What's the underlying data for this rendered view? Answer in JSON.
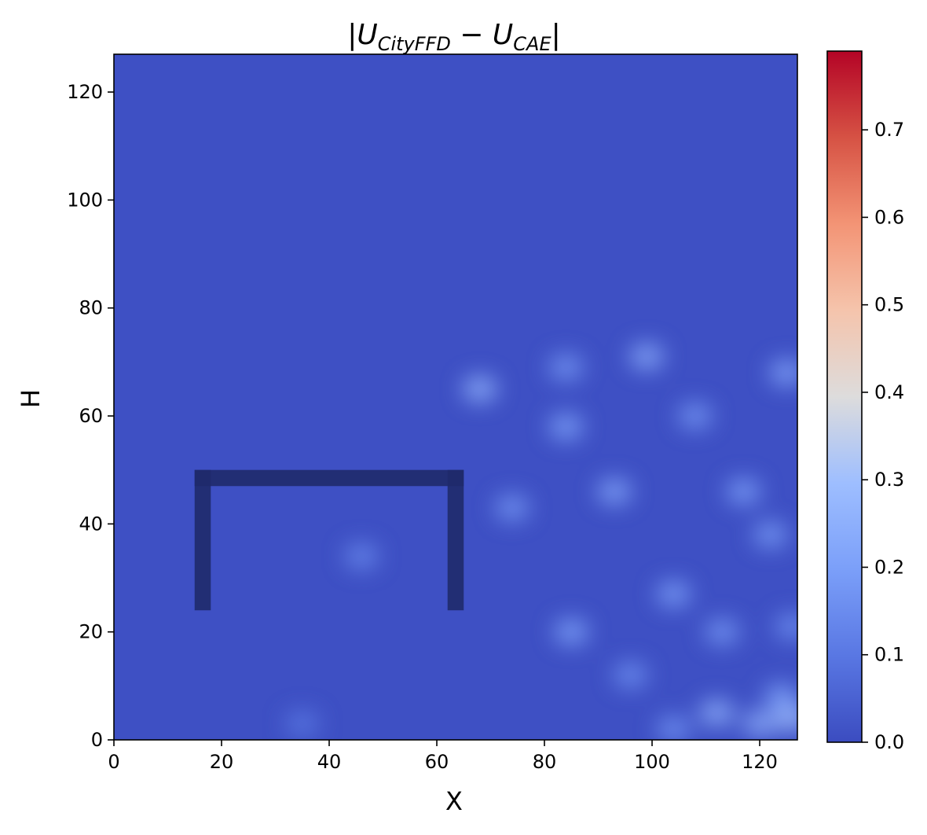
{
  "chart_data": {
    "type": "heatmap",
    "title": {
      "bar_open": "|",
      "u1": "U",
      "sub1": "CityFFD",
      "minus": " − ",
      "u2": "U",
      "sub2": "CAE",
      "bar_close": "|"
    },
    "xlabel": "X",
    "ylabel": "H",
    "xlim": [
      0,
      127
    ],
    "ylim": [
      0,
      127
    ],
    "xticks": [
      0,
      20,
      40,
      60,
      80,
      100,
      120
    ],
    "yticks": [
      0,
      20,
      40,
      60,
      80,
      100,
      120
    ],
    "colormap": "coolwarm",
    "clim": [
      0.0,
      0.79
    ],
    "colorbar_ticks": [
      "0.0",
      "0.1",
      "0.2",
      "0.3",
      "0.4",
      "0.5",
      "0.6",
      "0.7"
    ],
    "colorbar_tick_values": [
      0.0,
      0.1,
      0.2,
      0.3,
      0.4,
      0.5,
      0.6,
      0.7
    ],
    "background_value": 0.01,
    "building": {
      "x_range": [
        15,
        65
      ],
      "h_range": [
        24,
        50
      ],
      "thickness": 3,
      "color": "#1f2a6b"
    },
    "features": [
      {
        "x": 68,
        "h": 65,
        "value": 0.26
      },
      {
        "x": 84,
        "h": 69,
        "value": 0.18
      },
      {
        "x": 99,
        "h": 71,
        "value": 0.24
      },
      {
        "x": 125,
        "h": 68,
        "value": 0.22
      },
      {
        "x": 84,
        "h": 58,
        "value": 0.21
      },
      {
        "x": 108,
        "h": 60,
        "value": 0.18
      },
      {
        "x": 93,
        "h": 46,
        "value": 0.22
      },
      {
        "x": 74,
        "h": 43,
        "value": 0.18
      },
      {
        "x": 117,
        "h": 46,
        "value": 0.2
      },
      {
        "x": 122,
        "h": 38,
        "value": 0.19
      },
      {
        "x": 46,
        "h": 34,
        "value": 0.14
      },
      {
        "x": 104,
        "h": 27,
        "value": 0.2
      },
      {
        "x": 85,
        "h": 20,
        "value": 0.21
      },
      {
        "x": 113,
        "h": 20,
        "value": 0.18
      },
      {
        "x": 126,
        "h": 21,
        "value": 0.16
      },
      {
        "x": 96,
        "h": 12,
        "value": 0.16
      },
      {
        "x": 124,
        "h": 8,
        "value": 0.21
      },
      {
        "x": 112,
        "h": 5,
        "value": 0.26
      },
      {
        "x": 120,
        "h": 3,
        "value": 0.25
      },
      {
        "x": 126,
        "h": 4,
        "value": 0.3
      },
      {
        "x": 104,
        "h": 2,
        "value": 0.17
      },
      {
        "x": 35,
        "h": 3,
        "value": 0.1
      }
    ]
  }
}
